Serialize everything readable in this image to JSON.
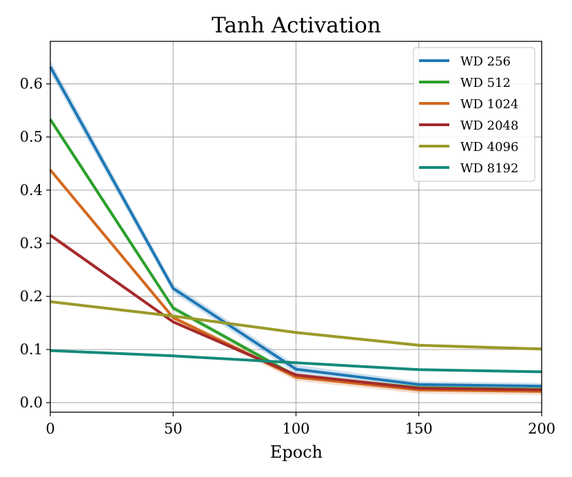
{
  "chart_data": {
    "type": "line",
    "title": "Tanh Activation",
    "xlabel": "Epoch",
    "ylabel": "",
    "x": [
      0,
      50,
      100,
      150,
      200
    ],
    "xlim": [
      0,
      200
    ],
    "ylim": [
      -0.018,
      0.68
    ],
    "xticks": [
      0,
      50,
      100,
      150,
      200
    ],
    "yticks": [
      0.0,
      0.1,
      0.2,
      0.3,
      0.4,
      0.5,
      0.6
    ],
    "xtick_labels": [
      "0",
      "50",
      "100",
      "150",
      "200"
    ],
    "ytick_labels": [
      "0.0",
      "0.1",
      "0.2",
      "0.3",
      "0.4",
      "0.5",
      "0.6"
    ],
    "grid": true,
    "legend_position": "top-right",
    "series": [
      {
        "name": "WD 256",
        "color": "#1f77b4",
        "values": [
          0.632,
          0.215,
          0.063,
          0.034,
          0.031
        ],
        "band": [
          0.012,
          0.008,
          0.008,
          0.006,
          0.006
        ]
      },
      {
        "name": "WD 512",
        "color": "#2ca02c",
        "values": [
          0.533,
          0.178,
          0.05,
          0.028,
          0.025
        ],
        "band": [
          0.006,
          0.005,
          0.004,
          0.004,
          0.004
        ]
      },
      {
        "name": "WD 1024",
        "color": "#d2691e",
        "values": [
          0.438,
          0.16,
          0.048,
          0.024,
          0.021
        ],
        "band": [
          0.004,
          0.004,
          0.007,
          0.007,
          0.007
        ]
      },
      {
        "name": "WD 2048",
        "color": "#a52a2a",
        "values": [
          0.315,
          0.152,
          0.052,
          0.027,
          0.024
        ],
        "band": [
          0.004,
          0.003,
          0.003,
          0.003,
          0.003
        ]
      },
      {
        "name": "WD 4096",
        "color": "#9a9a2a",
        "values": [
          0.19,
          0.163,
          0.132,
          0.108,
          0.101
        ],
        "band": [
          0.003,
          0.003,
          0.003,
          0.003,
          0.003
        ]
      },
      {
        "name": "WD 8192",
        "color": "#138a7a",
        "values": [
          0.098,
          0.088,
          0.075,
          0.062,
          0.058
        ],
        "band": [
          0.002,
          0.002,
          0.002,
          0.002,
          0.002
        ]
      }
    ]
  }
}
